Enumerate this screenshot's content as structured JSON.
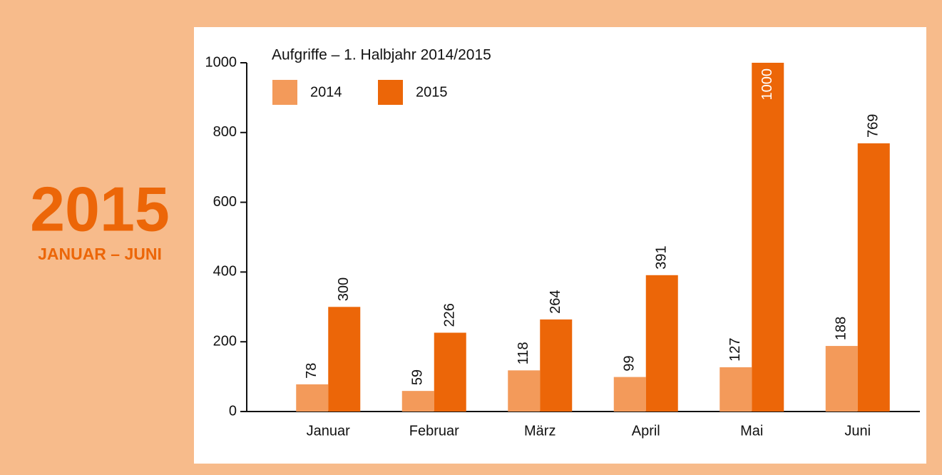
{
  "badge": {
    "year": "2015",
    "period": "JANUAR – JUNI"
  },
  "chart_data": {
    "type": "bar",
    "title": "Aufgriffe – 1. Halbjahr 2014/2015",
    "categories": [
      "Januar",
      "Februar",
      "März",
      "April",
      "Mai",
      "Juni"
    ],
    "series": [
      {
        "name": "2014",
        "color": "#f39a5a",
        "values": [
          78,
          59,
          118,
          99,
          127,
          188
        ]
      },
      {
        "name": "2015",
        "color": "#ec6608",
        "values": [
          300,
          226,
          264,
          391,
          1000,
          769
        ]
      }
    ],
    "ylim": [
      0,
      1000
    ],
    "yticks": [
      0,
      200,
      400,
      600,
      800,
      1000
    ],
    "legend": "top-left"
  }
}
